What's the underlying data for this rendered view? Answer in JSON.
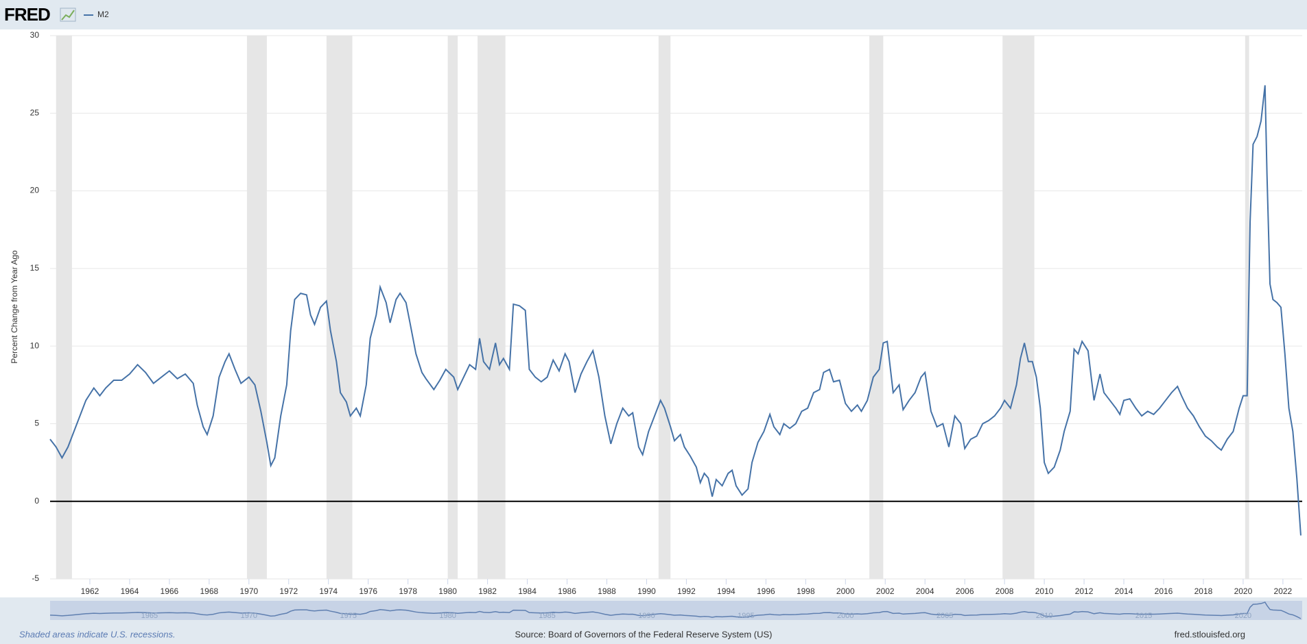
{
  "header": {
    "logo": "FRED"
  },
  "chart_data": {
    "type": "line",
    "y_label": "Percent Change from Year Ago",
    "x": [
      1960.0,
      1960.3,
      1960.6,
      1960.9,
      1961.2,
      1961.5,
      1961.8,
      1962.2,
      1962.5,
      1962.8,
      1963.2,
      1963.6,
      1964.0,
      1964.4,
      1964.8,
      1965.2,
      1965.6,
      1966.0,
      1966.4,
      1966.8,
      1967.2,
      1967.4,
      1967.7,
      1967.9,
      1968.2,
      1968.5,
      1968.8,
      1969.0,
      1969.3,
      1969.6,
      1970.0,
      1970.3,
      1970.6,
      1970.9,
      1971.1,
      1971.3,
      1971.6,
      1971.9,
      1972.1,
      1972.3,
      1972.6,
      1972.9,
      1973.1,
      1973.3,
      1973.6,
      1973.9,
      1974.1,
      1974.4,
      1974.6,
      1974.9,
      1975.1,
      1975.4,
      1975.6,
      1975.9,
      1976.1,
      1976.4,
      1976.6,
      1976.9,
      1977.1,
      1977.4,
      1977.6,
      1977.9,
      1978.1,
      1978.4,
      1978.7,
      1978.9,
      1979.3,
      1979.6,
      1979.9,
      1980.3,
      1980.5,
      1980.8,
      1981.1,
      1981.4,
      1981.6,
      1981.8,
      1982.1,
      1982.4,
      1982.6,
      1982.8,
      1983.1,
      1983.3,
      1983.6,
      1983.9,
      1984.1,
      1984.4,
      1984.7,
      1985.0,
      1985.3,
      1985.6,
      1985.9,
      1986.1,
      1986.4,
      1986.7,
      1987.0,
      1987.3,
      1987.6,
      1987.9,
      1988.2,
      1988.5,
      1988.8,
      1989.1,
      1989.3,
      1989.6,
      1989.8,
      1990.1,
      1990.4,
      1990.7,
      1990.9,
      1991.2,
      1991.4,
      1991.7,
      1991.9,
      1992.2,
      1992.5,
      1992.7,
      1992.9,
      1993.1,
      1993.3,
      1993.5,
      1993.8,
      1994.1,
      1994.3,
      1994.5,
      1994.8,
      1995.1,
      1995.3,
      1995.6,
      1995.9,
      1996.2,
      1996.4,
      1996.7,
      1996.9,
      1997.2,
      1997.5,
      1997.8,
      1998.1,
      1998.4,
      1998.7,
      1998.9,
      1999.2,
      1999.4,
      1999.7,
      2000.0,
      2000.3,
      2000.6,
      2000.8,
      2001.1,
      2001.4,
      2001.7,
      2001.9,
      2002.1,
      2002.4,
      2002.7,
      2002.9,
      2003.2,
      2003.5,
      2003.8,
      2004.0,
      2004.3,
      2004.6,
      2004.9,
      2005.2,
      2005.5,
      2005.8,
      2006.0,
      2006.3,
      2006.6,
      2006.9,
      2007.2,
      2007.5,
      2007.8,
      2008.0,
      2008.3,
      2008.6,
      2008.8,
      2009.0,
      2009.2,
      2009.4,
      2009.6,
      2009.8,
      2010.0,
      2010.2,
      2010.5,
      2010.8,
      2011.0,
      2011.3,
      2011.5,
      2011.7,
      2011.9,
      2012.2,
      2012.5,
      2012.8,
      2013.0,
      2013.3,
      2013.6,
      2013.8,
      2014.0,
      2014.3,
      2014.6,
      2014.9,
      2015.2,
      2015.5,
      2015.8,
      2016.1,
      2016.4,
      2016.7,
      2016.9,
      2017.2,
      2017.5,
      2017.8,
      2018.1,
      2018.4,
      2018.7,
      2018.9,
      2019.2,
      2019.5,
      2019.8,
      2020.0,
      2020.2,
      2020.35,
      2020.5,
      2020.7,
      2020.9,
      2021.1,
      2021.2,
      2021.35,
      2021.5,
      2021.7,
      2021.9,
      2022.1,
      2022.3,
      2022.5,
      2022.7,
      2022.9
    ],
    "series": [
      {
        "name": "M2",
        "color": "#4572a7",
        "values": [
          4.0,
          3.5,
          2.8,
          3.5,
          4.5,
          5.5,
          6.5,
          7.3,
          6.8,
          7.3,
          7.8,
          7.8,
          8.2,
          8.8,
          8.3,
          7.6,
          8.0,
          8.4,
          7.9,
          8.2,
          7.6,
          6.2,
          4.8,
          4.3,
          5.5,
          8.0,
          9.0,
          9.5,
          8.5,
          7.6,
          8.0,
          7.5,
          5.8,
          3.8,
          2.3,
          2.8,
          5.5,
          7.5,
          11.0,
          13.0,
          13.4,
          13.3,
          12.0,
          11.4,
          12.5,
          12.9,
          11.0,
          9.0,
          7.0,
          6.4,
          5.5,
          6.0,
          5.5,
          7.5,
          10.5,
          12.0,
          13.8,
          12.8,
          11.5,
          13.0,
          13.4,
          12.8,
          11.5,
          9.5,
          8.3,
          7.9,
          7.2,
          7.8,
          8.5,
          8.0,
          7.2,
          8.0,
          8.8,
          8.5,
          10.5,
          9.0,
          8.5,
          10.2,
          8.8,
          9.2,
          8.5,
          12.7,
          12.6,
          12.3,
          8.5,
          8.0,
          7.7,
          8.0,
          9.1,
          8.4,
          9.5,
          9.0,
          7.0,
          8.2,
          9.0,
          9.7,
          8.0,
          5.5,
          3.7,
          5.0,
          6.0,
          5.5,
          5.7,
          3.5,
          3.0,
          4.5,
          5.5,
          6.5,
          6.0,
          4.8,
          3.9,
          4.3,
          3.5,
          2.9,
          2.2,
          1.2,
          1.8,
          1.5,
          0.3,
          1.4,
          1.0,
          1.8,
          2.0,
          1.0,
          0.4,
          0.8,
          2.5,
          3.8,
          4.5,
          5.6,
          4.8,
          4.3,
          5.0,
          4.7,
          5.0,
          5.8,
          6.0,
          7.0,
          7.2,
          8.3,
          8.5,
          7.7,
          7.8,
          6.3,
          5.8,
          6.2,
          5.8,
          6.5,
          8.0,
          8.5,
          10.2,
          10.3,
          7.0,
          7.5,
          5.9,
          6.5,
          7.0,
          8.0,
          8.3,
          5.8,
          4.8,
          5.0,
          3.5,
          5.5,
          5.0,
          3.4,
          4.0,
          4.2,
          5.0,
          5.2,
          5.5,
          6.0,
          6.5,
          6.0,
          7.5,
          9.2,
          10.2,
          9.0,
          9.0,
          8.0,
          6.0,
          2.5,
          1.8,
          2.2,
          3.3,
          4.5,
          5.8,
          9.8,
          9.5,
          10.3,
          9.7,
          6.5,
          8.2,
          7.0,
          6.5,
          6.0,
          5.6,
          6.5,
          6.6,
          6.0,
          5.5,
          5.8,
          5.6,
          6.0,
          6.5,
          7.0,
          7.4,
          6.8,
          6.0,
          5.5,
          4.8,
          4.2,
          3.9,
          3.5,
          3.3,
          4.0,
          4.5,
          6.0,
          6.8,
          6.8,
          18.0,
          23.0,
          23.5,
          24.5,
          26.8,
          21.0,
          14.0,
          13.0,
          12.8,
          12.5,
          9.5,
          6.0,
          4.5,
          1.5,
          -2.2
        ]
      }
    ],
    "xlim": [
      1960,
      2022.97
    ],
    "xticks": [
      1962,
      1964,
      1966,
      1968,
      1970,
      1972,
      1974,
      1976,
      1978,
      1980,
      1982,
      1984,
      1986,
      1988,
      1990,
      1992,
      1994,
      1996,
      1998,
      2000,
      2002,
      2004,
      2006,
      2008,
      2010,
      2012,
      2014,
      2016,
      2018,
      2020,
      2022
    ],
    "ylim": [
      -5,
      30
    ],
    "yticks": [
      -5,
      0,
      5,
      10,
      15,
      20,
      25,
      30
    ],
    "grid": true,
    "recessions": [
      [
        1960.3,
        1961.1
      ],
      [
        1969.9,
        1970.9
      ],
      [
        1973.9,
        1975.2
      ],
      [
        1980.0,
        1980.5
      ],
      [
        1981.5,
        1982.9
      ],
      [
        1990.6,
        1991.2
      ],
      [
        2001.2,
        2001.9
      ],
      [
        2007.9,
        2009.5
      ],
      [
        2020.1,
        2020.3
      ]
    ],
    "navigator_ticks": [
      1965,
      1970,
      1975,
      1980,
      1985,
      1990,
      1995,
      2000,
      2005,
      2010,
      2015,
      2020
    ]
  },
  "footer": {
    "note": "Shaded areas indicate U.S. recessions.",
    "source": "Source: Board of Governors of the Federal Reserve System (US)",
    "url": "fred.stlouisfed.org"
  }
}
